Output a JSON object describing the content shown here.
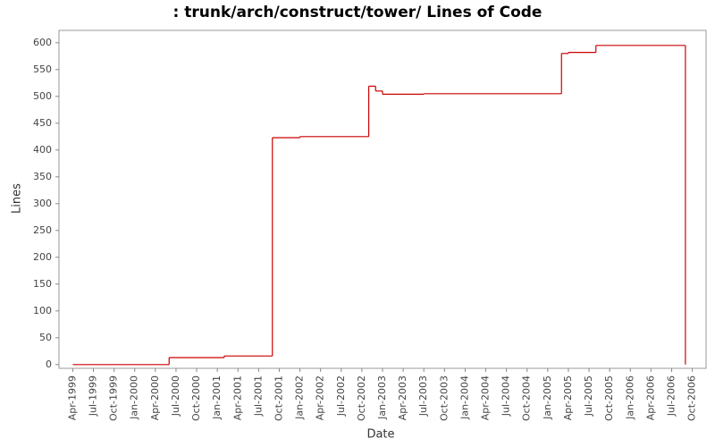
{
  "chart_data": {
    "type": "step",
    "title": ": trunk/arch/construct/tower/ Lines of Code",
    "x_label": "Date",
    "y_label": "Lines",
    "series": [
      {
        "name": "Lines",
        "color": "#cc0000",
        "x": [
          "1999-04",
          "2000-06",
          "2001-02",
          "2001-09",
          "2002-01",
          "2002-11",
          "2002-12",
          "2003-01",
          "2003-07",
          "2005-03",
          "2005-04",
          "2005-08",
          "2006-09"
        ],
        "values": [
          0,
          13,
          16,
          423,
          425,
          519,
          510,
          504,
          505,
          580,
          582,
          595,
          0
        ]
      }
    ],
    "xlim": [
      "1999-02",
      "2006-12"
    ],
    "xticks": [
      {
        "value": "1999-04",
        "label": "Apr-1999"
      },
      {
        "value": "1999-07",
        "label": "Jul-1999"
      },
      {
        "value": "1999-10",
        "label": "Oct-1999"
      },
      {
        "value": "2000-01",
        "label": "Jan-2000"
      },
      {
        "value": "2000-04",
        "label": "Apr-2000"
      },
      {
        "value": "2000-07",
        "label": "Jul-2000"
      },
      {
        "value": "2000-10",
        "label": "Oct-2000"
      },
      {
        "value": "2001-01",
        "label": "Jan-2001"
      },
      {
        "value": "2001-04",
        "label": "Apr-2001"
      },
      {
        "value": "2001-07",
        "label": "Jul-2001"
      },
      {
        "value": "2001-10",
        "label": "Oct-2001"
      },
      {
        "value": "2002-01",
        "label": "Jan-2002"
      },
      {
        "value": "2002-04",
        "label": "Apr-2002"
      },
      {
        "value": "2002-07",
        "label": "Jul-2002"
      },
      {
        "value": "2002-10",
        "label": "Oct-2002"
      },
      {
        "value": "2003-01",
        "label": "Jan-2003"
      },
      {
        "value": "2003-04",
        "label": "Apr-2003"
      },
      {
        "value": "2003-07",
        "label": "Jul-2003"
      },
      {
        "value": "2003-10",
        "label": "Oct-2003"
      },
      {
        "value": "2004-01",
        "label": "Jan-2004"
      },
      {
        "value": "2004-04",
        "label": "Apr-2004"
      },
      {
        "value": "2004-07",
        "label": "Jul-2004"
      },
      {
        "value": "2004-10",
        "label": "Oct-2004"
      },
      {
        "value": "2005-01",
        "label": "Jan-2005"
      },
      {
        "value": "2005-04",
        "label": "Apr-2005"
      },
      {
        "value": "2005-07",
        "label": "Jul-2005"
      },
      {
        "value": "2005-10",
        "label": "Oct-2005"
      },
      {
        "value": "2006-01",
        "label": "Jan-2006"
      },
      {
        "value": "2006-04",
        "label": "Apr-2006"
      },
      {
        "value": "2006-07",
        "label": "Jul-2006"
      },
      {
        "value": "2006-10",
        "label": "Oct-2006"
      }
    ],
    "ylim": [
      -7,
      623
    ],
    "yticks": [
      0,
      50,
      100,
      150,
      200,
      250,
      300,
      350,
      400,
      450,
      500,
      550,
      600
    ],
    "grid": false
  }
}
